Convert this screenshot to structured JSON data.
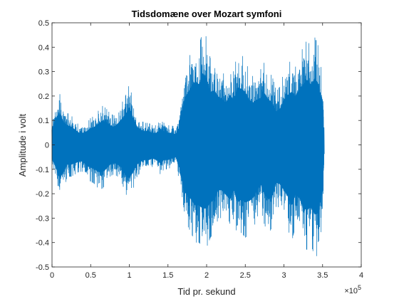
{
  "chart_data": {
    "type": "line",
    "title": "Tidsdomæne over Mozart symfoni",
    "xlabel": "Tid pr. sekund",
    "ylabel": "Amplitude i volt",
    "x_exponent_label": "×10",
    "x_exponent_power": "5",
    "xlim": [
      0,
      400000
    ],
    "ylim": [
      -0.5,
      0.5
    ],
    "x_ticks": [
      0,
      50000,
      100000,
      150000,
      200000,
      250000,
      300000,
      350000,
      400000
    ],
    "x_tick_labels": [
      "0",
      "0.5",
      "1",
      "1.5",
      "2",
      "2.5",
      "3",
      "3.5",
      "4"
    ],
    "y_ticks": [
      -0.5,
      -0.4,
      -0.3,
      -0.2,
      -0.1,
      0,
      0.1,
      0.2,
      0.3,
      0.4,
      0.5
    ],
    "y_tick_labels": [
      "-0.5",
      "-0.4",
      "-0.3",
      "-0.2",
      "-0.1",
      "0",
      "0.1",
      "0.2",
      "0.3",
      "0.4",
      "0.5"
    ],
    "grid": false,
    "series_color": "#0072BD",
    "signal_length": 352000,
    "envelope": {
      "x": [
        0,
        5000,
        10000,
        15000,
        20000,
        25000,
        30000,
        35000,
        40000,
        45000,
        50000,
        55000,
        60000,
        65000,
        70000,
        75000,
        80000,
        85000,
        90000,
        95000,
        100000,
        105000,
        110000,
        115000,
        120000,
        125000,
        130000,
        135000,
        140000,
        145000,
        150000,
        155000,
        160000,
        165000,
        170000,
        175000,
        180000,
        185000,
        190000,
        195000,
        200000,
        205000,
        210000,
        215000,
        220000,
        225000,
        230000,
        235000,
        240000,
        245000,
        250000,
        255000,
        260000,
        265000,
        270000,
        275000,
        280000,
        285000,
        290000,
        295000,
        300000,
        305000,
        310000,
        315000,
        320000,
        325000,
        330000,
        335000,
        340000,
        345000,
        350000,
        352000
      ],
      "upper": [
        0.1,
        0.18,
        0.21,
        0.15,
        0.13,
        0.12,
        0.1,
        0.08,
        0.08,
        0.09,
        0.11,
        0.12,
        0.14,
        0.16,
        0.15,
        0.13,
        0.12,
        0.14,
        0.17,
        0.2,
        0.25,
        0.18,
        0.12,
        0.1,
        0.09,
        0.09,
        0.08,
        0.08,
        0.1,
        0.09,
        0.08,
        0.08,
        0.07,
        0.12,
        0.28,
        0.34,
        0.38,
        0.42,
        0.4,
        0.47,
        0.44,
        0.35,
        0.36,
        0.32,
        0.3,
        0.28,
        0.33,
        0.3,
        0.38,
        0.37,
        0.35,
        0.3,
        0.28,
        0.3,
        0.31,
        0.34,
        0.3,
        0.28,
        0.22,
        0.24,
        0.3,
        0.33,
        0.35,
        0.32,
        0.37,
        0.4,
        0.43,
        0.4,
        0.44,
        0.4,
        0.26,
        0.08
      ],
      "lower": [
        -0.09,
        -0.15,
        -0.22,
        -0.18,
        -0.13,
        -0.13,
        -0.12,
        -0.11,
        -0.11,
        -0.14,
        -0.15,
        -0.16,
        -0.18,
        -0.18,
        -0.16,
        -0.13,
        -0.12,
        -0.13,
        -0.15,
        -0.2,
        -0.22,
        -0.18,
        -0.13,
        -0.11,
        -0.1,
        -0.1,
        -0.09,
        -0.1,
        -0.12,
        -0.1,
        -0.1,
        -0.09,
        -0.08,
        -0.15,
        -0.3,
        -0.33,
        -0.36,
        -0.4,
        -0.4,
        -0.42,
        -0.42,
        -0.38,
        -0.36,
        -0.3,
        -0.3,
        -0.33,
        -0.36,
        -0.3,
        -0.38,
        -0.36,
        -0.38,
        -0.37,
        -0.35,
        -0.3,
        -0.26,
        -0.33,
        -0.36,
        -0.34,
        -0.25,
        -0.26,
        -0.3,
        -0.34,
        -0.4,
        -0.33,
        -0.35,
        -0.42,
        -0.43,
        -0.41,
        -0.46,
        -0.45,
        -0.3,
        -0.06
      ]
    }
  }
}
